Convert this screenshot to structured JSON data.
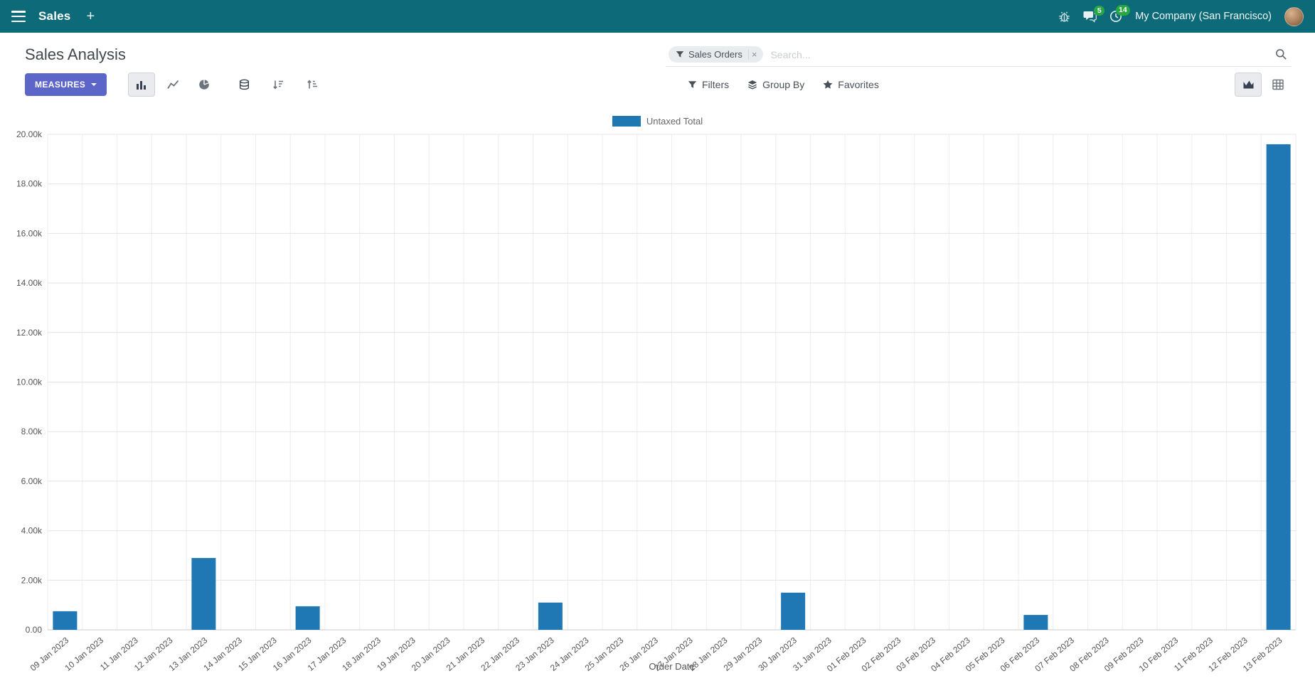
{
  "navbar": {
    "app_name": "Sales",
    "company": "My Company (San Francisco)",
    "messages_badge": "5",
    "activities_badge": "14"
  },
  "control_panel": {
    "title": "Sales Analysis",
    "search": {
      "facet_label": "Sales Orders",
      "facet_remove": "×",
      "placeholder": "Search..."
    },
    "toolbar": {
      "measures_label": "MEASURES",
      "filters_label": "Filters",
      "group_by_label": "Group By",
      "favorites_label": "Favorites"
    }
  },
  "chart_data": {
    "type": "bar",
    "title": "",
    "legend": [
      "Untaxed Total"
    ],
    "legend_position": "top",
    "grid": true,
    "bar_color": "#1f77b4",
    "xlabel": "Order Date",
    "ylabel": "",
    "ylim": [
      0,
      20000
    ],
    "ytick_step": 2000,
    "ytick_labels": [
      "0.00",
      "2.00k",
      "4.00k",
      "6.00k",
      "8.00k",
      "10.00k",
      "12.00k",
      "14.00k",
      "16.00k",
      "18.00k",
      "20.00k"
    ],
    "categories": [
      "09 Jan 2023",
      "10 Jan 2023",
      "11 Jan 2023",
      "12 Jan 2023",
      "13 Jan 2023",
      "14 Jan 2023",
      "15 Jan 2023",
      "16 Jan 2023",
      "17 Jan 2023",
      "18 Jan 2023",
      "19 Jan 2023",
      "20 Jan 2023",
      "21 Jan 2023",
      "22 Jan 2023",
      "23 Jan 2023",
      "24 Jan 2023",
      "25 Jan 2023",
      "26 Jan 2023",
      "27 Jan 2023",
      "28 Jan 2023",
      "29 Jan 2023",
      "30 Jan 2023",
      "31 Jan 2023",
      "01 Feb 2023",
      "02 Feb 2023",
      "03 Feb 2023",
      "04 Feb 2023",
      "05 Feb 2023",
      "06 Feb 2023",
      "07 Feb 2023",
      "08 Feb 2023",
      "09 Feb 2023",
      "10 Feb 2023",
      "11 Feb 2023",
      "12 Feb 2023",
      "13 Feb 2023"
    ],
    "values": [
      750,
      0,
      0,
      0,
      2900,
      0,
      0,
      950,
      0,
      0,
      0,
      0,
      0,
      0,
      1100,
      0,
      0,
      0,
      0,
      0,
      0,
      1500,
      0,
      0,
      0,
      0,
      0,
      0,
      600,
      0,
      0,
      0,
      0,
      0,
      0,
      19600
    ]
  }
}
